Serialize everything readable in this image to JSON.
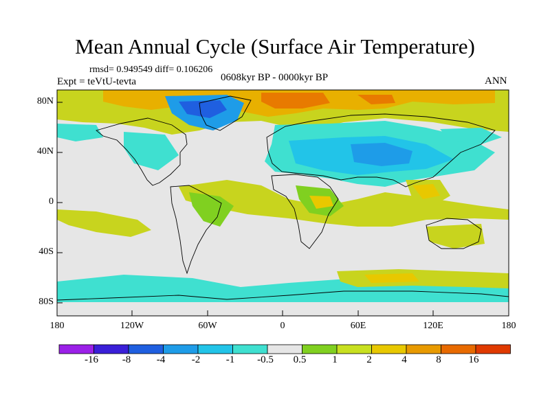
{
  "title": "Mean Annual Cycle (Surface Air Temperature)",
  "stats": "rmsd= 0.949549 diff= 0.106206",
  "experiment": "Expt = teVtU-tevta",
  "period": "0608kyr BP - 0000kyr BP",
  "season": "ANN",
  "lat_ticks": [
    "80N",
    "40N",
    "0",
    "40S",
    "80S"
  ],
  "lon_ticks": [
    "180",
    "120W",
    "60W",
    "0",
    "60E",
    "120E",
    "180"
  ],
  "colorbar": {
    "colors": [
      "#9b20e8",
      "#3a1fd8",
      "#1f5fe0",
      "#1e9ce8",
      "#22c4e8",
      "#3fe0d0",
      "#e6e6e6",
      "#80d020",
      "#c8e020",
      "#e8c800",
      "#e89a00",
      "#e86a00",
      "#e03a00"
    ],
    "labels": [
      "-16",
      "-8",
      "-4",
      "-2",
      "-1",
      "-0.5",
      "0.5",
      "1",
      "2",
      "4",
      "8",
      "16"
    ]
  },
  "chart_data": {
    "type": "heatmap",
    "title": "Mean Annual Cycle (Surface Air Temperature)",
    "x_range": [
      -180,
      180
    ],
    "y_range": [
      -90,
      90
    ],
    "levels": [
      -16,
      -8,
      -4,
      -2,
      -1,
      -0.5,
      0.5,
      1,
      2,
      4,
      8,
      16
    ]
  }
}
